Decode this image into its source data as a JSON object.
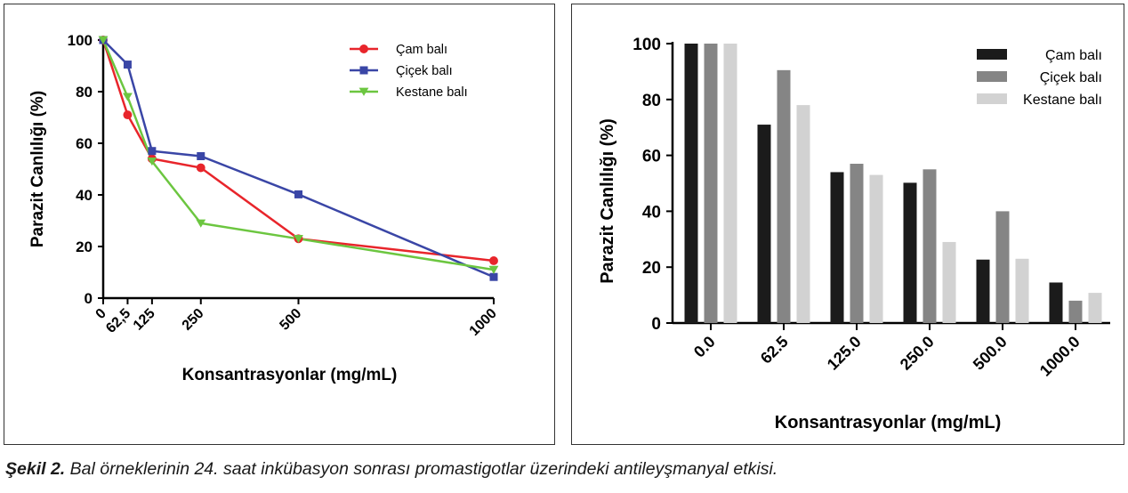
{
  "chart_data": [
    {
      "type": "line",
      "x": [
        0,
        62.5,
        125,
        250,
        500,
        1000
      ],
      "x_tick_labels": [
        "0",
        "62,5",
        "125",
        "250",
        "500",
        "1000"
      ],
      "xlabel": "Konsantrasyonlar (mg/mL)",
      "ylabel": "Parazit Canlılığı (%)",
      "ylim": [
        0,
        100
      ],
      "y_ticks": [
        0,
        20,
        40,
        60,
        80,
        100
      ],
      "legend_position": "top-right",
      "grid": false,
      "series": [
        {
          "name": "Çam balı",
          "color": "#e8252b",
          "marker": "circle",
          "values": [
            100,
            71,
            54,
            50.5,
            23,
            14.5
          ]
        },
        {
          "name": "Çiçek balı",
          "color": "#3a46a6",
          "marker": "square",
          "values": [
            100,
            90.5,
            57,
            55,
            40.2,
            8.2
          ]
        },
        {
          "name": "Kestane balı",
          "color": "#6cc640",
          "marker": "triangle-down",
          "values": [
            100,
            78,
            53,
            29,
            23,
            11
          ]
        }
      ]
    },
    {
      "type": "bar",
      "categories": [
        "0.0",
        "62.5",
        "125.0",
        "250.0",
        "500.0",
        "1000.0"
      ],
      "xlabel": "Konsantrasyonlar (mg/mL)",
      "ylabel": "Parazit Canlılığı (%)",
      "ylim": [
        0,
        100
      ],
      "y_ticks": [
        0,
        20,
        40,
        60,
        80,
        100
      ],
      "legend_position": "top-right",
      "grid": false,
      "series": [
        {
          "name": "Çam balı",
          "color": "#1b1b1b",
          "values": [
            100,
            71,
            54,
            50.2,
            22.7,
            14.5
          ]
        },
        {
          "name": "Çiçek balı",
          "color": "#858585",
          "values": [
            100,
            90.5,
            57,
            55,
            40,
            8
          ]
        },
        {
          "name": "Kestane balı",
          "color": "#d2d2d2",
          "values": [
            100,
            78,
            53,
            29,
            23,
            10.8
          ]
        }
      ]
    }
  ],
  "caption": {
    "label": "Şekil 2.",
    "text": " Bal örneklerinin 24. saat inkübasyon sonrası promastigotlar üzerindeki antileyşmanyal etkisi."
  }
}
